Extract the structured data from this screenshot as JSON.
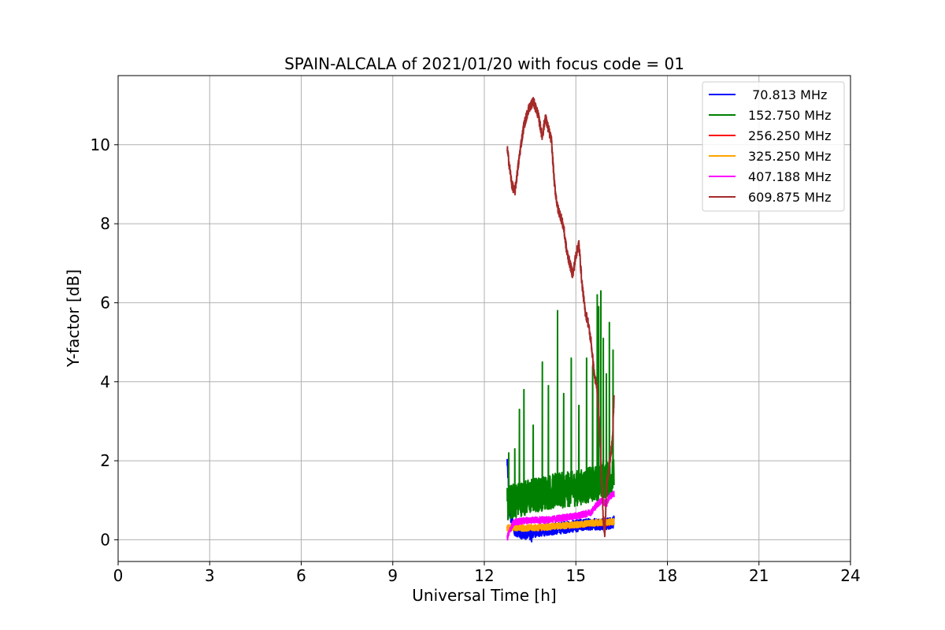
{
  "chart_data": {
    "type": "line",
    "title": "SPAIN-ALCALA of 2021/01/20 with focus code = 01",
    "xlabel": "Universal Time [h]",
    "ylabel": "Y-factor [dB]",
    "xlim": [
      0,
      24
    ],
    "ylim": [
      -0.55,
      11.75
    ],
    "xticks": [
      0,
      3,
      6,
      9,
      12,
      15,
      18,
      21,
      24
    ],
    "yticks": [
      0,
      2,
      4,
      6,
      8,
      10
    ],
    "grid": true,
    "legend_position": "top-right",
    "series": [
      {
        "name": " 70.813 MHz",
        "color": "#0000ff",
        "style": "noise",
        "points": [
          [
            12.75,
            2.0
          ],
          [
            12.85,
            0.6
          ],
          [
            13.0,
            0.25
          ],
          [
            13.3,
            0.15
          ],
          [
            13.6,
            0.2
          ],
          [
            14.0,
            0.25
          ],
          [
            14.5,
            0.3
          ],
          [
            15.0,
            0.35
          ],
          [
            15.5,
            0.4
          ],
          [
            16.0,
            0.4
          ],
          [
            16.25,
            0.45
          ]
        ],
        "amplitude": 0.15,
        "spikes": [
          [
            12.72,
            2.2
          ],
          [
            12.8,
            1.6
          ],
          [
            13.55,
            -0.05
          ],
          [
            13.5,
            0.0
          ]
        ]
      },
      {
        "name": "152.750 MHz",
        "color": "#008000",
        "style": "noise",
        "points": [
          [
            12.75,
            0.9
          ],
          [
            13.0,
            1.0
          ],
          [
            13.5,
            1.1
          ],
          [
            14.0,
            1.2
          ],
          [
            14.5,
            1.25
          ],
          [
            15.0,
            1.3
          ],
          [
            15.5,
            1.4
          ],
          [
            16.0,
            1.5
          ],
          [
            16.25,
            1.6
          ]
        ],
        "amplitude": 0.45,
        "spikes": [
          [
            12.8,
            2.2
          ],
          [
            13.0,
            2.3
          ],
          [
            13.15,
            3.3
          ],
          [
            13.3,
            3.8
          ],
          [
            13.6,
            2.9
          ],
          [
            13.9,
            4.5
          ],
          [
            14.1,
            3.9
          ],
          [
            14.4,
            5.8
          ],
          [
            14.6,
            3.7
          ],
          [
            14.85,
            4.6
          ],
          [
            15.1,
            3.4
          ],
          [
            15.35,
            4.6
          ],
          [
            15.55,
            4.4
          ],
          [
            15.7,
            6.2
          ],
          [
            15.75,
            5.9
          ],
          [
            15.82,
            6.3
          ],
          [
            15.9,
            5.1
          ],
          [
            16.0,
            4.2
          ],
          [
            16.1,
            5.5
          ],
          [
            16.22,
            4.8
          ]
        ]
      },
      {
        "name": "256.250 MHz",
        "color": "#ff0000",
        "style": "noise",
        "points": [
          [
            12.75,
            0.3
          ],
          [
            13.0,
            0.3
          ],
          [
            13.5,
            0.3
          ],
          [
            14.0,
            0.3
          ],
          [
            14.5,
            0.35
          ],
          [
            15.0,
            0.35
          ],
          [
            15.5,
            0.4
          ],
          [
            16.0,
            0.4
          ],
          [
            16.25,
            0.45
          ]
        ],
        "amplitude": 0.05,
        "spikes": []
      },
      {
        "name": "325.250 MHz",
        "color": "#ffa500",
        "style": "noise",
        "points": [
          [
            12.75,
            0.3
          ],
          [
            13.0,
            0.3
          ],
          [
            13.5,
            0.3
          ],
          [
            14.0,
            0.32
          ],
          [
            14.5,
            0.35
          ],
          [
            15.0,
            0.38
          ],
          [
            15.5,
            0.42
          ],
          [
            16.0,
            0.45
          ],
          [
            16.25,
            0.45
          ]
        ],
        "amplitude": 0.08,
        "spikes": []
      },
      {
        "name": "407.188 MHz",
        "color": "#ff00ff",
        "style": "noise",
        "points": [
          [
            12.75,
            0.05
          ],
          [
            12.9,
            0.35
          ],
          [
            13.0,
            0.45
          ],
          [
            13.5,
            0.5
          ],
          [
            14.0,
            0.5
          ],
          [
            14.5,
            0.55
          ],
          [
            15.0,
            0.6
          ],
          [
            15.3,
            0.65
          ],
          [
            15.5,
            0.7
          ],
          [
            15.7,
            0.9
          ],
          [
            15.85,
            1.0
          ],
          [
            16.0,
            0.9
          ],
          [
            16.1,
            1.1
          ],
          [
            16.25,
            1.15
          ]
        ],
        "amplitude": 0.08,
        "spikes": []
      },
      {
        "name": "609.875 MHz",
        "color": "#a52a2a",
        "style": "noise",
        "points": [
          [
            12.75,
            9.9
          ],
          [
            12.9,
            9.0
          ],
          [
            13.0,
            8.8
          ],
          [
            13.1,
            9.4
          ],
          [
            13.2,
            10.0
          ],
          [
            13.3,
            10.5
          ],
          [
            13.45,
            10.9
          ],
          [
            13.6,
            11.1
          ],
          [
            13.75,
            10.8
          ],
          [
            13.9,
            10.2
          ],
          [
            14.0,
            10.7
          ],
          [
            14.1,
            10.4
          ],
          [
            14.2,
            10.1
          ],
          [
            14.3,
            9.0
          ],
          [
            14.4,
            8.4
          ],
          [
            14.5,
            8.2
          ],
          [
            14.6,
            7.9
          ],
          [
            14.7,
            7.3
          ],
          [
            14.8,
            7.0
          ],
          [
            14.9,
            6.7
          ],
          [
            15.0,
            7.2
          ],
          [
            15.1,
            7.5
          ],
          [
            15.2,
            6.5
          ],
          [
            15.3,
            5.8
          ],
          [
            15.4,
            5.5
          ],
          [
            15.5,
            5.0
          ],
          [
            15.6,
            4.2
          ],
          [
            15.7,
            3.8
          ],
          [
            15.8,
            2.5
          ],
          [
            15.85,
            1.5
          ],
          [
            15.9,
            0.5
          ],
          [
            15.95,
            0.1
          ],
          [
            16.0,
            1.3
          ],
          [
            16.1,
            1.9
          ],
          [
            16.2,
            2.5
          ],
          [
            16.25,
            3.6
          ]
        ],
        "amplitude": 0.12,
        "spikes": []
      }
    ]
  }
}
